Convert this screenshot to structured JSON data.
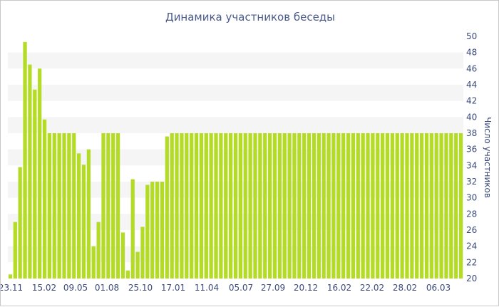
{
  "chart_data": {
    "type": "bar",
    "title": "Динамика участников беседы",
    "ylabel": "Число участников",
    "xlabel": "",
    "ylim": [
      20,
      50
    ],
    "y_ticks": [
      20,
      22,
      24,
      26,
      28,
      30,
      32,
      34,
      36,
      38,
      40,
      42,
      44,
      46,
      48,
      50
    ],
    "x_tick_labels": [
      "23.11",
      "15.02",
      "09.05",
      "01.08",
      "25.10",
      "17.01",
      "11.04",
      "05.07",
      "27.09",
      "20.12",
      "16.02",
      "22.02",
      "28.02",
      "06.03"
    ],
    "grid": "horizontal-bands",
    "bar_color": "#b4dc26",
    "values": [
      20.5,
      27,
      33.8,
      49.3,
      46.5,
      43.4,
      46,
      39.7,
      38,
      38,
      38,
      38,
      38,
      38,
      35.5,
      34.1,
      36,
      24,
      27,
      38,
      38,
      38,
      38,
      25.7,
      21,
      32.3,
      23.3,
      26.4,
      31.6,
      32,
      32,
      32,
      37.6,
      38,
      38,
      38,
      38,
      38,
      38,
      38,
      38,
      38,
      38,
      38,
      38,
      38,
      38,
      38,
      38,
      38,
      38,
      38,
      38,
      38,
      38,
      38,
      38,
      38,
      38,
      38,
      38,
      38,
      38,
      38,
      38,
      38,
      38,
      38,
      38,
      38,
      38,
      38,
      38,
      38,
      38,
      38,
      38,
      38,
      38,
      38,
      38,
      38,
      38,
      38,
      38,
      38,
      38,
      38,
      38,
      38,
      38,
      38,
      38
    ]
  }
}
